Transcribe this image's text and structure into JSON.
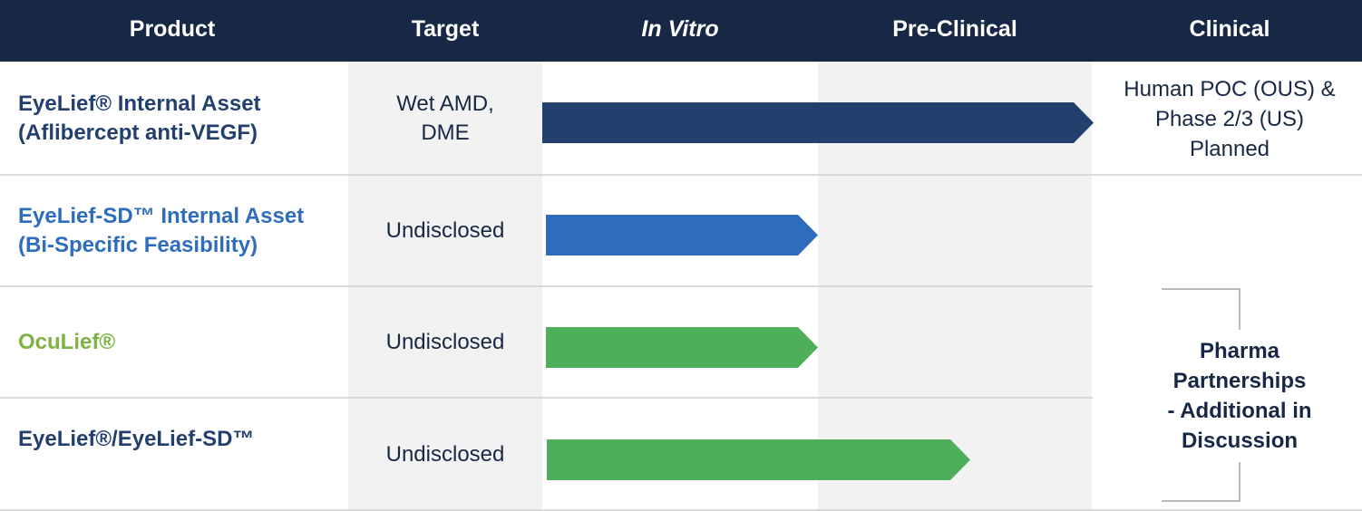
{
  "header": {
    "product": "Product",
    "target": "Target",
    "in_vitro": "In Vitro",
    "pre_clinical": "Pre-Clinical",
    "clinical": "Clinical"
  },
  "colors": {
    "header_bg": "#172846",
    "navy": "#233f6e",
    "blue": "#2e6dbe",
    "green": "#4fae5a",
    "oculief_text": "#7cb342"
  },
  "rows": [
    {
      "product_line1": "EyeLief® Internal Asset",
      "product_line2": "(Aflibercept anti-VEGF)",
      "target_line1": "Wet AMD,",
      "target_line2": "DME",
      "progress_stage": "Pre-Clinical (complete)",
      "bar_color": "navy",
      "clinical_line1": "Human POC (OUS) &",
      "clinical_line2": "Phase 2/3 (US)",
      "clinical_line3": "Planned"
    },
    {
      "product_line1": "EyeLief-SD™ Internal Asset",
      "product_line2": "(Bi-Specific Feasibility)",
      "target": "Undisclosed",
      "progress_stage": "In Vitro",
      "bar_color": "blue"
    },
    {
      "product_line1": "OcuLief®",
      "target": "Undisclosed",
      "progress_stage": "In Vitro",
      "bar_color": "green"
    },
    {
      "product_line1": "EyeLief®/EyeLief-SD™",
      "target": "Undisclosed",
      "progress_stage": "In Vitro → Pre-Clinical (partial)",
      "bar_color": "green"
    }
  ],
  "partnerships": {
    "line1": "Pharma",
    "line2": "Partnerships",
    "line3": "- Additional in",
    "line4": "Discussion"
  }
}
